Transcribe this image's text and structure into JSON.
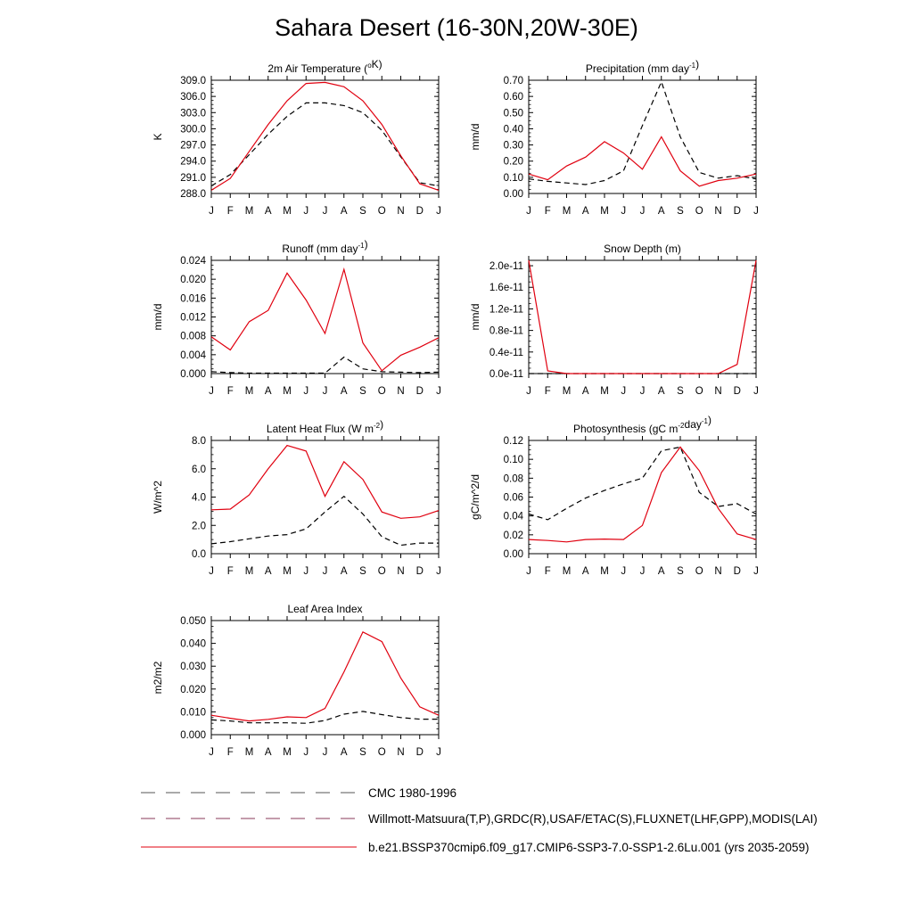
{
  "title": "Sahara Desert (16-30N,20W-30E)",
  "colors": {
    "model": "#e0000f",
    "reference": "#000000",
    "axis": "#000000"
  },
  "chart_data": [
    {
      "type": "line",
      "title_parts": [
        {
          "t": "2m Air Temperature ("
        },
        {
          "t": "o",
          "sup": true
        },
        {
          "t": "K)"
        }
      ],
      "ylabel": "K",
      "categories": [
        "J",
        "F",
        "M",
        "A",
        "M",
        "J",
        "J",
        "A",
        "S",
        "O",
        "N",
        "D",
        "J"
      ],
      "ylim": [
        288.0,
        309.0
      ],
      "yticks": [
        "288.0",
        "291.0",
        "294.0",
        "297.0",
        "300.0",
        "303.0",
        "306.0",
        "309.0"
      ],
      "ytick_values": [
        288,
        291,
        294,
        297,
        300,
        303,
        306,
        309
      ],
      "series": [
        {
          "key": "model",
          "style": "solid",
          "values": [
            288.6,
            290.8,
            295.8,
            300.8,
            305.2,
            308.4,
            308.6,
            307.8,
            305.2,
            300.8,
            295.0,
            289.8,
            288.6
          ]
        },
        {
          "key": "ref",
          "style": "dashed",
          "values": [
            289.4,
            291.5,
            295.2,
            299.0,
            302.3,
            304.8,
            304.8,
            304.3,
            303.0,
            299.7,
            294.8,
            290.0,
            289.4
          ]
        }
      ]
    },
    {
      "type": "line",
      "title_parts": [
        {
          "t": "Precipitation (mm day"
        },
        {
          "t": "-1",
          "sup": true
        },
        {
          "t": ")"
        }
      ],
      "ylabel": "mm/d",
      "categories": [
        "J",
        "F",
        "M",
        "A",
        "M",
        "J",
        "J",
        "A",
        "S",
        "O",
        "N",
        "D",
        "J"
      ],
      "ylim": [
        0.0,
        0.7
      ],
      "yticks": [
        "0.00",
        "0.10",
        "0.20",
        "0.30",
        "0.40",
        "0.50",
        "0.60",
        "0.70"
      ],
      "ytick_values": [
        0,
        0.1,
        0.2,
        0.3,
        0.4,
        0.5,
        0.6,
        0.7
      ],
      "series": [
        {
          "key": "model",
          "style": "solid",
          "values": [
            0.12,
            0.085,
            0.17,
            0.225,
            0.32,
            0.25,
            0.15,
            0.35,
            0.14,
            0.045,
            0.08,
            0.095,
            0.12
          ]
        },
        {
          "key": "ref",
          "style": "dashed",
          "values": [
            0.09,
            0.075,
            0.065,
            0.055,
            0.08,
            0.14,
            0.42,
            0.69,
            0.35,
            0.13,
            0.095,
            0.11,
            0.09
          ]
        }
      ]
    },
    {
      "type": "line",
      "title_parts": [
        {
          "t": "Runoff (mm day"
        },
        {
          "t": "-1",
          "sup": true
        },
        {
          "t": ")"
        }
      ],
      "ylabel": "mm/d",
      "categories": [
        "J",
        "F",
        "M",
        "A",
        "M",
        "J",
        "J",
        "A",
        "S",
        "O",
        "N",
        "D",
        "J"
      ],
      "ylim": [
        0.0,
        0.024
      ],
      "yticks": [
        "0.000",
        "0.004",
        "0.008",
        "0.012",
        "0.016",
        "0.020",
        "0.024"
      ],
      "ytick_values": [
        0,
        0.004,
        0.008,
        0.012,
        0.016,
        0.02,
        0.024
      ],
      "series": [
        {
          "key": "model",
          "style": "solid",
          "values": [
            0.0078,
            0.005,
            0.011,
            0.0134,
            0.0213,
            0.0156,
            0.0085,
            0.0221,
            0.0065,
            0.0006,
            0.0039,
            0.0056,
            0.0076
          ]
        },
        {
          "key": "ref",
          "style": "dashed",
          "values": [
            0.0004,
            0.0002,
            0.0001,
            0.0001,
            0.0001,
            0.0001,
            0.0001,
            0.0035,
            0.001,
            0.0004,
            0.0003,
            0.0002,
            0.0003
          ]
        }
      ]
    },
    {
      "type": "line",
      "title_parts": [
        {
          "t": "Snow Depth (m)"
        }
      ],
      "ylabel": "mm/d",
      "categories": [
        "J",
        "F",
        "M",
        "A",
        "M",
        "J",
        "J",
        "A",
        "S",
        "O",
        "N",
        "D",
        "J"
      ],
      "ylim": [
        0.0,
        2.1e-11
      ],
      "yticks": [
        "0.0e-11",
        "0.4e-11",
        "0.8e-11",
        "1.2e-11",
        "1.6e-11",
        "2.0e-11"
      ],
      "ytick_values": [
        0,
        4e-12,
        8e-12,
        1.2e-11,
        1.6e-11,
        2e-11
      ],
      "series": [
        {
          "key": "model",
          "style": "solid",
          "values": [
            2.1e-11,
            5e-13,
            0,
            0,
            0,
            0,
            0,
            0,
            0,
            0,
            0,
            1.7e-12,
            2.1e-11
          ]
        },
        {
          "key": "ref",
          "style": "dashed",
          "values": [
            0,
            0,
            0,
            0,
            0,
            0,
            0,
            0,
            0,
            0,
            0,
            0,
            0
          ]
        }
      ]
    },
    {
      "type": "line",
      "title_parts": [
        {
          "t": "Latent Heat Flux (W m"
        },
        {
          "t": "-2",
          "sup": true
        },
        {
          "t": ")"
        }
      ],
      "ylabel": "W/m^2",
      "categories": [
        "J",
        "F",
        "M",
        "A",
        "M",
        "J",
        "J",
        "A",
        "S",
        "O",
        "N",
        "D",
        "J"
      ],
      "ylim": [
        0.0,
        8.0
      ],
      "yticks": [
        "0.0",
        "2.0",
        "4.0",
        "6.0",
        "8.0"
      ],
      "ytick_values": [
        0,
        2,
        4,
        6,
        8
      ],
      "series": [
        {
          "key": "model",
          "style": "solid",
          "values": [
            3.1,
            3.15,
            4.15,
            6.0,
            7.65,
            7.25,
            4.05,
            6.5,
            5.25,
            2.95,
            2.5,
            2.6,
            3.05
          ]
        },
        {
          "key": "ref",
          "style": "dashed",
          "values": [
            0.7,
            0.85,
            1.05,
            1.25,
            1.35,
            1.75,
            2.95,
            4.05,
            2.8,
            1.2,
            0.6,
            0.75,
            0.75
          ]
        }
      ]
    },
    {
      "type": "line",
      "title_parts": [
        {
          "t": "Photosynthesis (gC m"
        },
        {
          "t": "-2",
          "sup": true
        },
        {
          "t": "day"
        },
        {
          "t": "-1",
          "sup": true
        },
        {
          "t": ")"
        }
      ],
      "ylabel": "gC/m^2/d",
      "categories": [
        "J",
        "F",
        "M",
        "A",
        "M",
        "J",
        "J",
        "A",
        "S",
        "O",
        "N",
        "D",
        "J"
      ],
      "ylim": [
        0.0,
        0.12
      ],
      "yticks": [
        "0.00",
        "0.02",
        "0.04",
        "0.06",
        "0.08",
        "0.10",
        "0.12"
      ],
      "ytick_values": [
        0,
        0.02,
        0.04,
        0.06,
        0.08,
        0.1,
        0.12
      ],
      "series": [
        {
          "key": "model",
          "style": "solid",
          "values": [
            0.015,
            0.014,
            0.0125,
            0.015,
            0.0155,
            0.015,
            0.03,
            0.086,
            0.113,
            0.088,
            0.048,
            0.021,
            0.015
          ]
        },
        {
          "key": "ref",
          "style": "dashed",
          "values": [
            0.042,
            0.036,
            0.048,
            0.059,
            0.067,
            0.074,
            0.08,
            0.109,
            0.113,
            0.065,
            0.05,
            0.053,
            0.042
          ]
        }
      ]
    },
    {
      "type": "line",
      "title_parts": [
        {
          "t": "Leaf Area Index"
        }
      ],
      "ylabel": "m2/m2",
      "categories": [
        "J",
        "F",
        "M",
        "A",
        "M",
        "J",
        "J",
        "A",
        "S",
        "O",
        "N",
        "D",
        "J"
      ],
      "ylim": [
        0.0,
        0.05
      ],
      "yticks": [
        "0.000",
        "0.010",
        "0.020",
        "0.030",
        "0.040",
        "0.050"
      ],
      "ytick_values": [
        0,
        0.01,
        0.02,
        0.03,
        0.04,
        0.05
      ],
      "series": [
        {
          "key": "model",
          "style": "solid",
          "values": [
            0.0085,
            0.0072,
            0.006,
            0.0067,
            0.0078,
            0.0075,
            0.0115,
            0.0275,
            0.045,
            0.0408,
            0.0248,
            0.0122,
            0.0085
          ]
        },
        {
          "key": "ref",
          "style": "dashed",
          "values": [
            0.0065,
            0.006,
            0.0052,
            0.0052,
            0.0052,
            0.005,
            0.0062,
            0.009,
            0.0102,
            0.0088,
            0.0075,
            0.0068,
            0.0068
          ]
        }
      ]
    }
  ],
  "legend": [
    {
      "label": "CMC 1980-1996",
      "style": "dashed",
      "color": "#555555"
    },
    {
      "label": "Willmott-Matsuura(T,P),GRDC(R),USAF/ETAC(S),FLUXNET(LHF,GPP),MODIS(LAI)",
      "style": "dashed",
      "color": "#8a3a5a"
    },
    {
      "label": "b.e21.BSSP370cmip6.f09_g17.CMIP6-SSP3-7.0-SSP1-2.6Lu.001 (yrs 2035-2059)",
      "style": "solid",
      "color": "#e0000f"
    }
  ]
}
